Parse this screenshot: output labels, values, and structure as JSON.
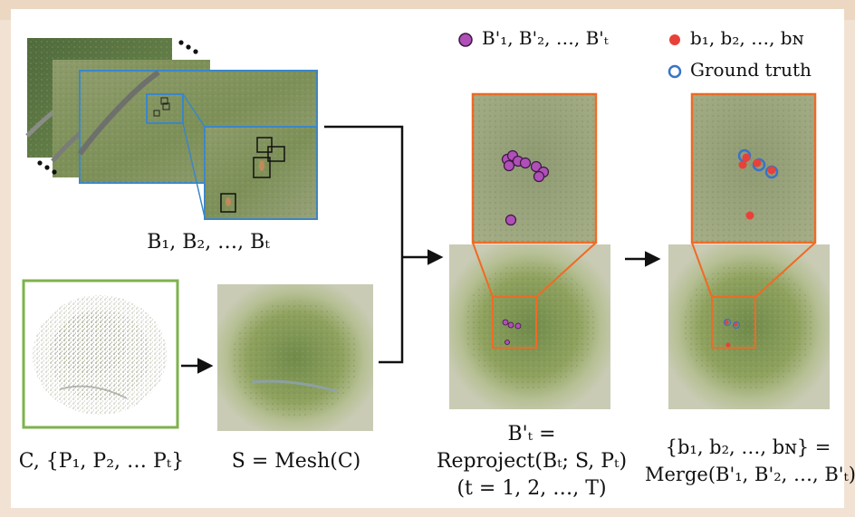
{
  "legend": {
    "reprojected": "B'₁, B'₂, …, B'ₜ",
    "merged": "b₁, b₂, …, bɴ",
    "ground_truth": "Ground truth"
  },
  "labels": {
    "detections": "B₁, B₂, …, Bₜ",
    "point_cloud": "C, {P₁, P₂, … Pₜ}",
    "mesh": "S = Mesh(C)",
    "reproject_line1": "B'ₜ =",
    "reproject_line2": "Reproject(Bₜ; S, Pₜ)",
    "reproject_line3": "(t = 1, 2, …, T)",
    "merge_line1": "{b₁, b₂, …, bɴ} =",
    "merge_line2": "Merge(B'₁, B'₂, …, B'ₜ)"
  },
  "colors": {
    "frame": "#f2e2d3",
    "image_border_blue": "#3b86c8",
    "point_cloud_border": "#7fb24c",
    "zoom_orange": "#f06a25",
    "reprojected_purple": "#b04fb8",
    "merged_red": "#e8413a",
    "ground_truth_blue": "#3a73c8"
  },
  "icons": [
    "ellipsis-icon",
    "arrow-icon"
  ]
}
